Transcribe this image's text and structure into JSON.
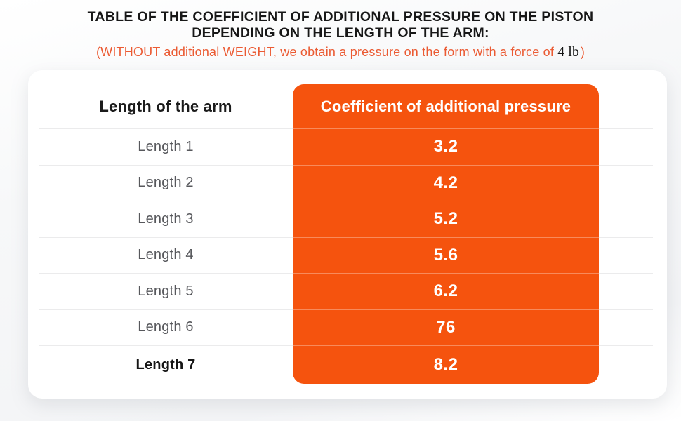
{
  "header": {
    "title_line1": "TABLE OF THE COEFFICIENT OF ADDITIONAL PRESSURE ON THE PISTON",
    "title_line2": "DEPENDING ON THE LENGTH OF THE ARM:",
    "subtitle_prefix": "(WITHOUT additional WEIGHT, we obtain a pressure on the form with a force of ",
    "subtitle_force": "4 lb",
    "subtitle_suffix": ")"
  },
  "chart_data": {
    "type": "table",
    "title": "TABLE OF THE COEFFICIENT OF ADDITIONAL PRESSURE ON THE PISTON DEPENDING ON THE LENGTH OF THE ARM:",
    "note": "(WITHOUT additional WEIGHT, we obtain a pressure on the form with a force of 4 lb)",
    "columns": [
      "Length of the arm",
      "Coefficient of additional pressure"
    ],
    "categories": [
      "Length 1",
      "Length 2",
      "Length 3",
      "Length 4",
      "Length 5",
      "Length 6",
      "Length 7"
    ],
    "values": [
      "3.2",
      "4.2",
      "5.2",
      "5.6",
      "6.2",
      "76",
      "8.2"
    ],
    "rows": [
      {
        "label": "Length 1",
        "value": "3.2"
      },
      {
        "label": "Length 2",
        "value": "4.2"
      },
      {
        "label": "Length 3",
        "value": "5.2"
      },
      {
        "label": "Length 4",
        "value": "5.6"
      },
      {
        "label": "Length 5",
        "value": "6.2"
      },
      {
        "label": "Length 6",
        "value": "76"
      },
      {
        "label": "Length 7",
        "value": "8.2"
      }
    ]
  },
  "colors": {
    "accent_orange": "#F5530E",
    "subtitle_orange": "#EB5B33",
    "value_text": "#FFFFFF",
    "label_text": "#57585C",
    "title_text": "#171717",
    "divider": "#EBEBEC",
    "card_background": "#FFFFFF"
  }
}
